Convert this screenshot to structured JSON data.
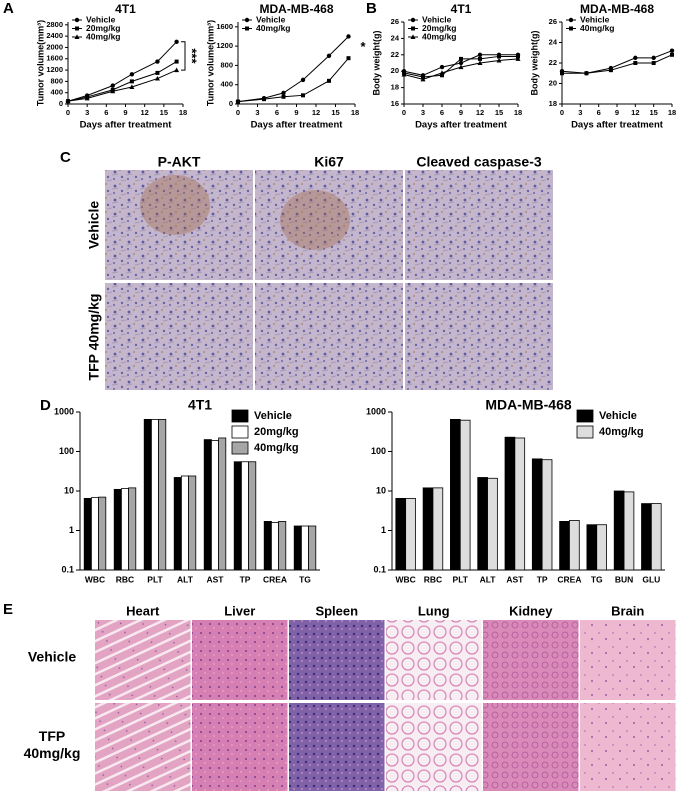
{
  "panel_labels": [
    "A",
    "B",
    "C",
    "D",
    "E"
  ],
  "chart_data": [
    {
      "type": "line",
      "title": "4T1",
      "x_label": "Days after treatment",
      "y_label": "Tumor volume(mm³)",
      "x": [
        0,
        3,
        7,
        10,
        14,
        17
      ],
      "xlim": [
        0,
        18
      ],
      "xticks": [
        0,
        3,
        6,
        9,
        12,
        15,
        18
      ],
      "ylim": [
        0,
        2900
      ],
      "yticks": [
        0,
        400,
        800,
        1200,
        1600,
        2000,
        2400,
        2800
      ],
      "annotation": "***",
      "series": [
        {
          "name": "Vehicle",
          "color": "#000000",
          "values": [
            100,
            300,
            650,
            1050,
            1500,
            2200
          ]
        },
        {
          "name": "20mg/kg",
          "color": "#000000",
          "values": [
            100,
            250,
            500,
            800,
            1100,
            1500
          ]
        },
        {
          "name": "40mg/kg",
          "color": "#000000",
          "values": [
            100,
            200,
            450,
            600,
            900,
            1200
          ]
        }
      ]
    },
    {
      "type": "line",
      "title": "MDA-MB-468",
      "x_label": "Days after treatment",
      "y_label": "Tumor volume(mm³)",
      "x": [
        0,
        4,
        7,
        10,
        14,
        17
      ],
      "xlim": [
        0,
        18
      ],
      "xticks": [
        0,
        3,
        6,
        9,
        12,
        15,
        18
      ],
      "ylim": [
        0,
        1700
      ],
      "yticks": [
        0,
        400,
        800,
        1200,
        1600
      ],
      "annotation": "*",
      "series": [
        {
          "name": "Vehicle",
          "color": "#000000",
          "values": [
            50,
            120,
            230,
            500,
            1000,
            1400
          ]
        },
        {
          "name": "40mg/kg",
          "color": "#000000",
          "values": [
            50,
            100,
            150,
            180,
            480,
            950
          ]
        }
      ]
    },
    {
      "type": "line",
      "title": "4T1",
      "x_label": "Days after treatment",
      "y_label": "Body weight(g)",
      "x": [
        0,
        3,
        6,
        9,
        12,
        15,
        18
      ],
      "xlim": [
        0,
        18
      ],
      "xticks": [
        0,
        3,
        6,
        9,
        12,
        15,
        18
      ],
      "ylim": [
        16,
        26
      ],
      "yticks": [
        16,
        18,
        20,
        22,
        24,
        26
      ],
      "series": [
        {
          "name": "Vehicle",
          "color": "#000000",
          "values": [
            20,
            19.5,
            20.5,
            21,
            22,
            22,
            22
          ]
        },
        {
          "name": "20mg/kg",
          "color": "#000000",
          "values": [
            19.8,
            19.3,
            19.5,
            21.5,
            21.5,
            21.8,
            21.8
          ]
        },
        {
          "name": "40mg/kg",
          "color": "#000000",
          "values": [
            19.6,
            19,
            19.8,
            20.5,
            21,
            21.3,
            21.5
          ]
        }
      ]
    },
    {
      "type": "line",
      "title": "MDA-MB-468",
      "x_label": "Days after treatment",
      "y_label": "Body weight(g)",
      "x": [
        0,
        4,
        8,
        12,
        15,
        18
      ],
      "xlim": [
        0,
        18
      ],
      "xticks": [
        0,
        3,
        6,
        9,
        12,
        15,
        18
      ],
      "ylim": [
        18,
        26
      ],
      "yticks": [
        18,
        20,
        22,
        24,
        26
      ],
      "series": [
        {
          "name": "Vehicle",
          "color": "#000000",
          "values": [
            21.2,
            21,
            21.5,
            22.5,
            22.5,
            23.2
          ]
        },
        {
          "name": "40mg/kg",
          "color": "#000000",
          "values": [
            21,
            21,
            21.3,
            22,
            22,
            22.8
          ]
        }
      ]
    },
    {
      "type": "bar",
      "title": "4T1",
      "log_scale": true,
      "categories": [
        "WBC",
        "RBC",
        "PLT",
        "ALT",
        "AST",
        "TP",
        "CREA",
        "TG"
      ],
      "ylim": [
        0.1,
        1000
      ],
      "yticks": [
        0.1,
        1,
        10,
        100,
        1000
      ],
      "series": [
        {
          "name": "Vehicle",
          "color": "#000000",
          "values": [
            6.5,
            11,
            650,
            22,
            200,
            55,
            1.7,
            1.3
          ]
        },
        {
          "name": "20mg/kg",
          "color": "#ffffff",
          "values": [
            6.8,
            11.5,
            650,
            24,
            190,
            55,
            1.6,
            1.3
          ]
        },
        {
          "name": "40mg/kg",
          "color": "#a6a6a6",
          "values": [
            7,
            12,
            650,
            24,
            220,
            55,
            1.7,
            1.3
          ]
        }
      ]
    },
    {
      "type": "bar",
      "title": "MDA-MB-468",
      "log_scale": true,
      "categories": [
        "WBC",
        "RBC",
        "PLT",
        "ALT",
        "AST",
        "TP",
        "CREA",
        "TG",
        "BUN",
        "GLU"
      ],
      "ylim": [
        0.1,
        1000
      ],
      "yticks": [
        0.1,
        1,
        10,
        100,
        1000
      ],
      "series": [
        {
          "name": "Vehicle",
          "color": "#000000",
          "values": [
            6.5,
            12,
            650,
            22,
            230,
            65,
            1.7,
            1.4,
            10,
            4.8
          ]
        },
        {
          "name": "40mg/kg",
          "color": "#dddddd",
          "values": [
            6.5,
            12,
            620,
            21,
            220,
            62,
            1.8,
            1.4,
            9.5,
            4.8
          ]
        }
      ]
    }
  ],
  "histology_c": {
    "columns": [
      "P-AKT",
      "Ki67",
      "Cleaved caspase-3"
    ],
    "rows": [
      "Vehicle",
      "TFP 40mg/kg"
    ]
  },
  "histology_e": {
    "columns": [
      "Heart",
      "Liver",
      "Spleen",
      "Lung",
      "Kidney",
      "Brain"
    ],
    "rows": [
      [
        "Vehicle"
      ],
      [
        "TFP",
        "40mg/kg"
      ]
    ]
  }
}
